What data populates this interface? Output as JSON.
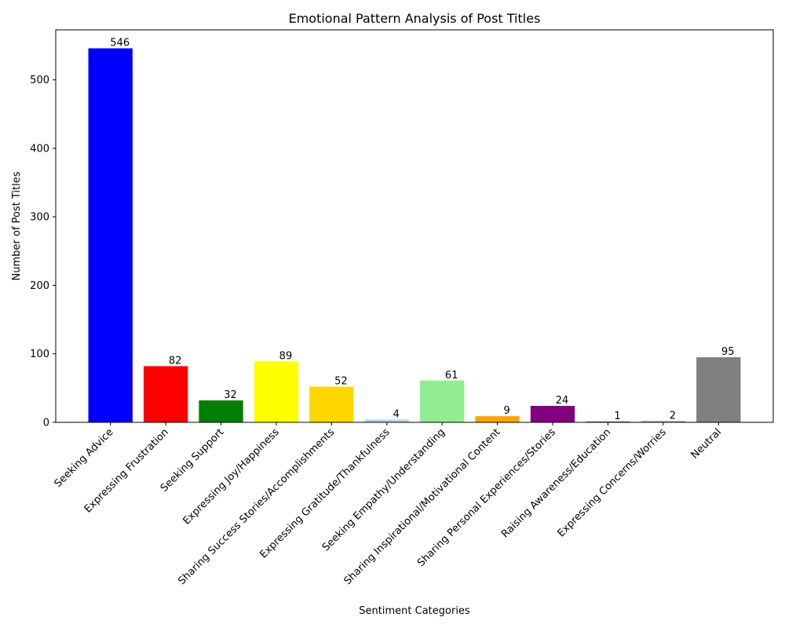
{
  "chart_data": {
    "type": "bar",
    "title": "Emotional Pattern Analysis of Post Titles",
    "xlabel": "Sentiment Categories",
    "ylabel": "Number of Post Titles",
    "ylim": [
      0,
      573
    ],
    "yticks": [
      0,
      100,
      200,
      300,
      400,
      500
    ],
    "grid": false,
    "categories": [
      "Seeking Advice",
      "Expressing Frustration",
      "Seeking Support",
      "Expressing Joy/Happiness",
      "Sharing Success Stories/Accomplishments",
      "Expressing Gratitude/Thankfulness",
      "Seeking Empathy/Understanding",
      "Sharing Inspirational/Motivational Content",
      "Sharing Personal Experiences/Stories",
      "Raising Awareness/Education",
      "Expressing Concerns/Worries",
      "Neutral"
    ],
    "values": [
      546,
      82,
      32,
      89,
      52,
      4,
      61,
      9,
      24,
      1,
      2,
      95
    ],
    "colors": [
      "#0000ff",
      "#ff0000",
      "#008000",
      "#ffff00",
      "#ffd700",
      "#add8e6",
      "#90ee90",
      "#ffa500",
      "#800080",
      "#000080",
      "#a9a9a9",
      "#808080"
    ]
  }
}
